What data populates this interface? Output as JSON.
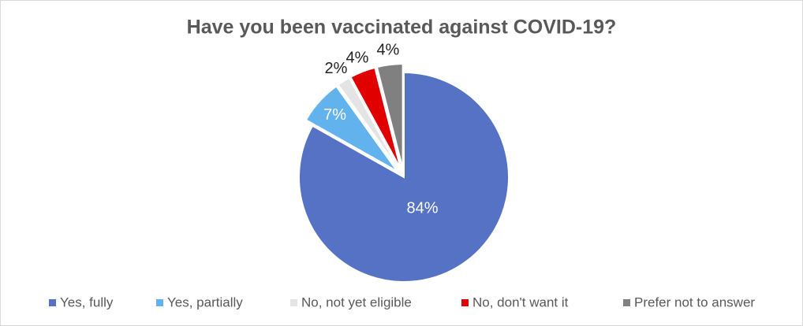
{
  "chart_data": {
    "type": "pie",
    "title": "Have you been vaccinated against COVID-19?",
    "categories": [
      "Yes, fully",
      "Yes, partially",
      "No, not yet eligible",
      "No, don't want it",
      "Prefer not to answer"
    ],
    "values": [
      84,
      7,
      2,
      4,
      4
    ],
    "value_labels": [
      "84%",
      "7%",
      "2%",
      "4%",
      "4%"
    ],
    "colors": [
      "#5572c4",
      "#62b2ee",
      "#e4e4e4",
      "#e00000",
      "#808080"
    ],
    "legend": "bottom"
  }
}
